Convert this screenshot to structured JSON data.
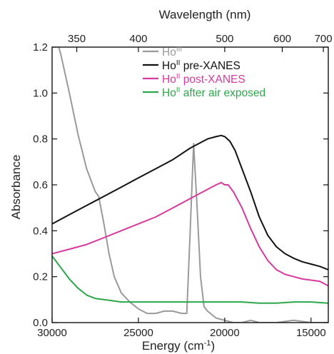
{
  "chart_data": {
    "type": "line",
    "xlabel": "Energy (cm",
    "xlabel_sup": "-1",
    "xlabel_close": ")",
    "ylabel": "Absorbance",
    "top_axis_label": "Wavelength (nm)",
    "xlim": [
      30000,
      14000
    ],
    "ylim": [
      0,
      1.2
    ],
    "x_ticks": [
      30000,
      25000,
      20000,
      15000
    ],
    "x_tick_labels": [
      "30000",
      "25000",
      "20000",
      "15000"
    ],
    "y_ticks": [
      0,
      0.2,
      0.4,
      0.6,
      0.8,
      1.0,
      1.2
    ],
    "y_tick_labels": [
      "0.0",
      "0.2",
      "0.4",
      "0.6",
      "0.8",
      "1.0",
      "1.2"
    ],
    "top_ticks_nm": [
      350,
      400,
      500,
      600,
      700
    ],
    "top_tick_labels": [
      "350",
      "400",
      "500",
      "600",
      "700"
    ],
    "legend_position": "top-right",
    "series": [
      {
        "name": "Ho",
        "name_sup": "III",
        "color": "#9a9a9a",
        "x": [
          30000,
          29500,
          29000,
          28500,
          28000,
          27500,
          27300,
          27000,
          26700,
          26400,
          26000,
          25500,
          25000,
          24500,
          24000,
          23500,
          23000,
          22500,
          22200,
          22000,
          21800,
          21600,
          21400,
          21200,
          21000,
          20500,
          20000,
          19500,
          19000,
          18500,
          18000,
          17000,
          16000,
          15000,
          14000
        ],
        "y": [
          1.3,
          1.17,
          1.0,
          0.82,
          0.67,
          0.57,
          0.55,
          0.43,
          0.3,
          0.2,
          0.13,
          0.09,
          0.06,
          0.04,
          0.04,
          0.05,
          0.05,
          0.04,
          0.04,
          0.4,
          0.78,
          0.5,
          0.2,
          0.07,
          0.05,
          0.02,
          0.01,
          0.0,
          0.0,
          0.01,
          0.0,
          0.0,
          0.01,
          0.0,
          0.0
        ]
      },
      {
        "name": "Ho",
        "name_sup": "II",
        "name_suffix": " pre-XANES",
        "color": "#111111",
        "x": [
          30000,
          29000,
          28000,
          27000,
          26000,
          25000,
          24000,
          23000,
          22000,
          21500,
          21000,
          20500,
          20200,
          20000,
          19700,
          19400,
          19000,
          18500,
          18000,
          17500,
          17000,
          16500,
          16000,
          15500,
          15000,
          14500,
          14000
        ],
        "y": [
          0.43,
          0.47,
          0.51,
          0.55,
          0.59,
          0.63,
          0.67,
          0.71,
          0.76,
          0.78,
          0.8,
          0.81,
          0.815,
          0.81,
          0.79,
          0.75,
          0.67,
          0.57,
          0.46,
          0.38,
          0.33,
          0.3,
          0.28,
          0.265,
          0.255,
          0.245,
          0.23
        ]
      },
      {
        "name": "Ho",
        "name_sup": "II",
        "name_suffix": " post-XANES",
        "color": "#d63a9e",
        "x": [
          30000,
          29000,
          28000,
          27000,
          26000,
          25000,
          24000,
          23000,
          22000,
          21000,
          20500,
          20200,
          20000,
          19800,
          19500,
          19000,
          18500,
          18000,
          17500,
          17000,
          16500,
          16000,
          15500,
          15000,
          14500,
          14000
        ],
        "y": [
          0.3,
          0.32,
          0.34,
          0.37,
          0.4,
          0.43,
          0.46,
          0.5,
          0.54,
          0.58,
          0.6,
          0.61,
          0.6,
          0.6,
          0.57,
          0.5,
          0.41,
          0.33,
          0.27,
          0.23,
          0.21,
          0.2,
          0.19,
          0.185,
          0.18,
          0.16
        ]
      },
      {
        "name": "Ho",
        "name_sup": "II",
        "name_suffix": " after air exposed",
        "color": "#2ca64a",
        "x": [
          30000,
          29500,
          29000,
          28500,
          28000,
          27500,
          27000,
          26500,
          26000,
          25000,
          24000,
          23000,
          22000,
          21000,
          20000,
          19000,
          18000,
          17000,
          16000,
          15000,
          14000
        ],
        "y": [
          0.29,
          0.24,
          0.19,
          0.15,
          0.12,
          0.105,
          0.1,
          0.095,
          0.09,
          0.09,
          0.09,
          0.09,
          0.09,
          0.09,
          0.09,
          0.09,
          0.085,
          0.085,
          0.09,
          0.09,
          0.085
        ]
      }
    ]
  }
}
